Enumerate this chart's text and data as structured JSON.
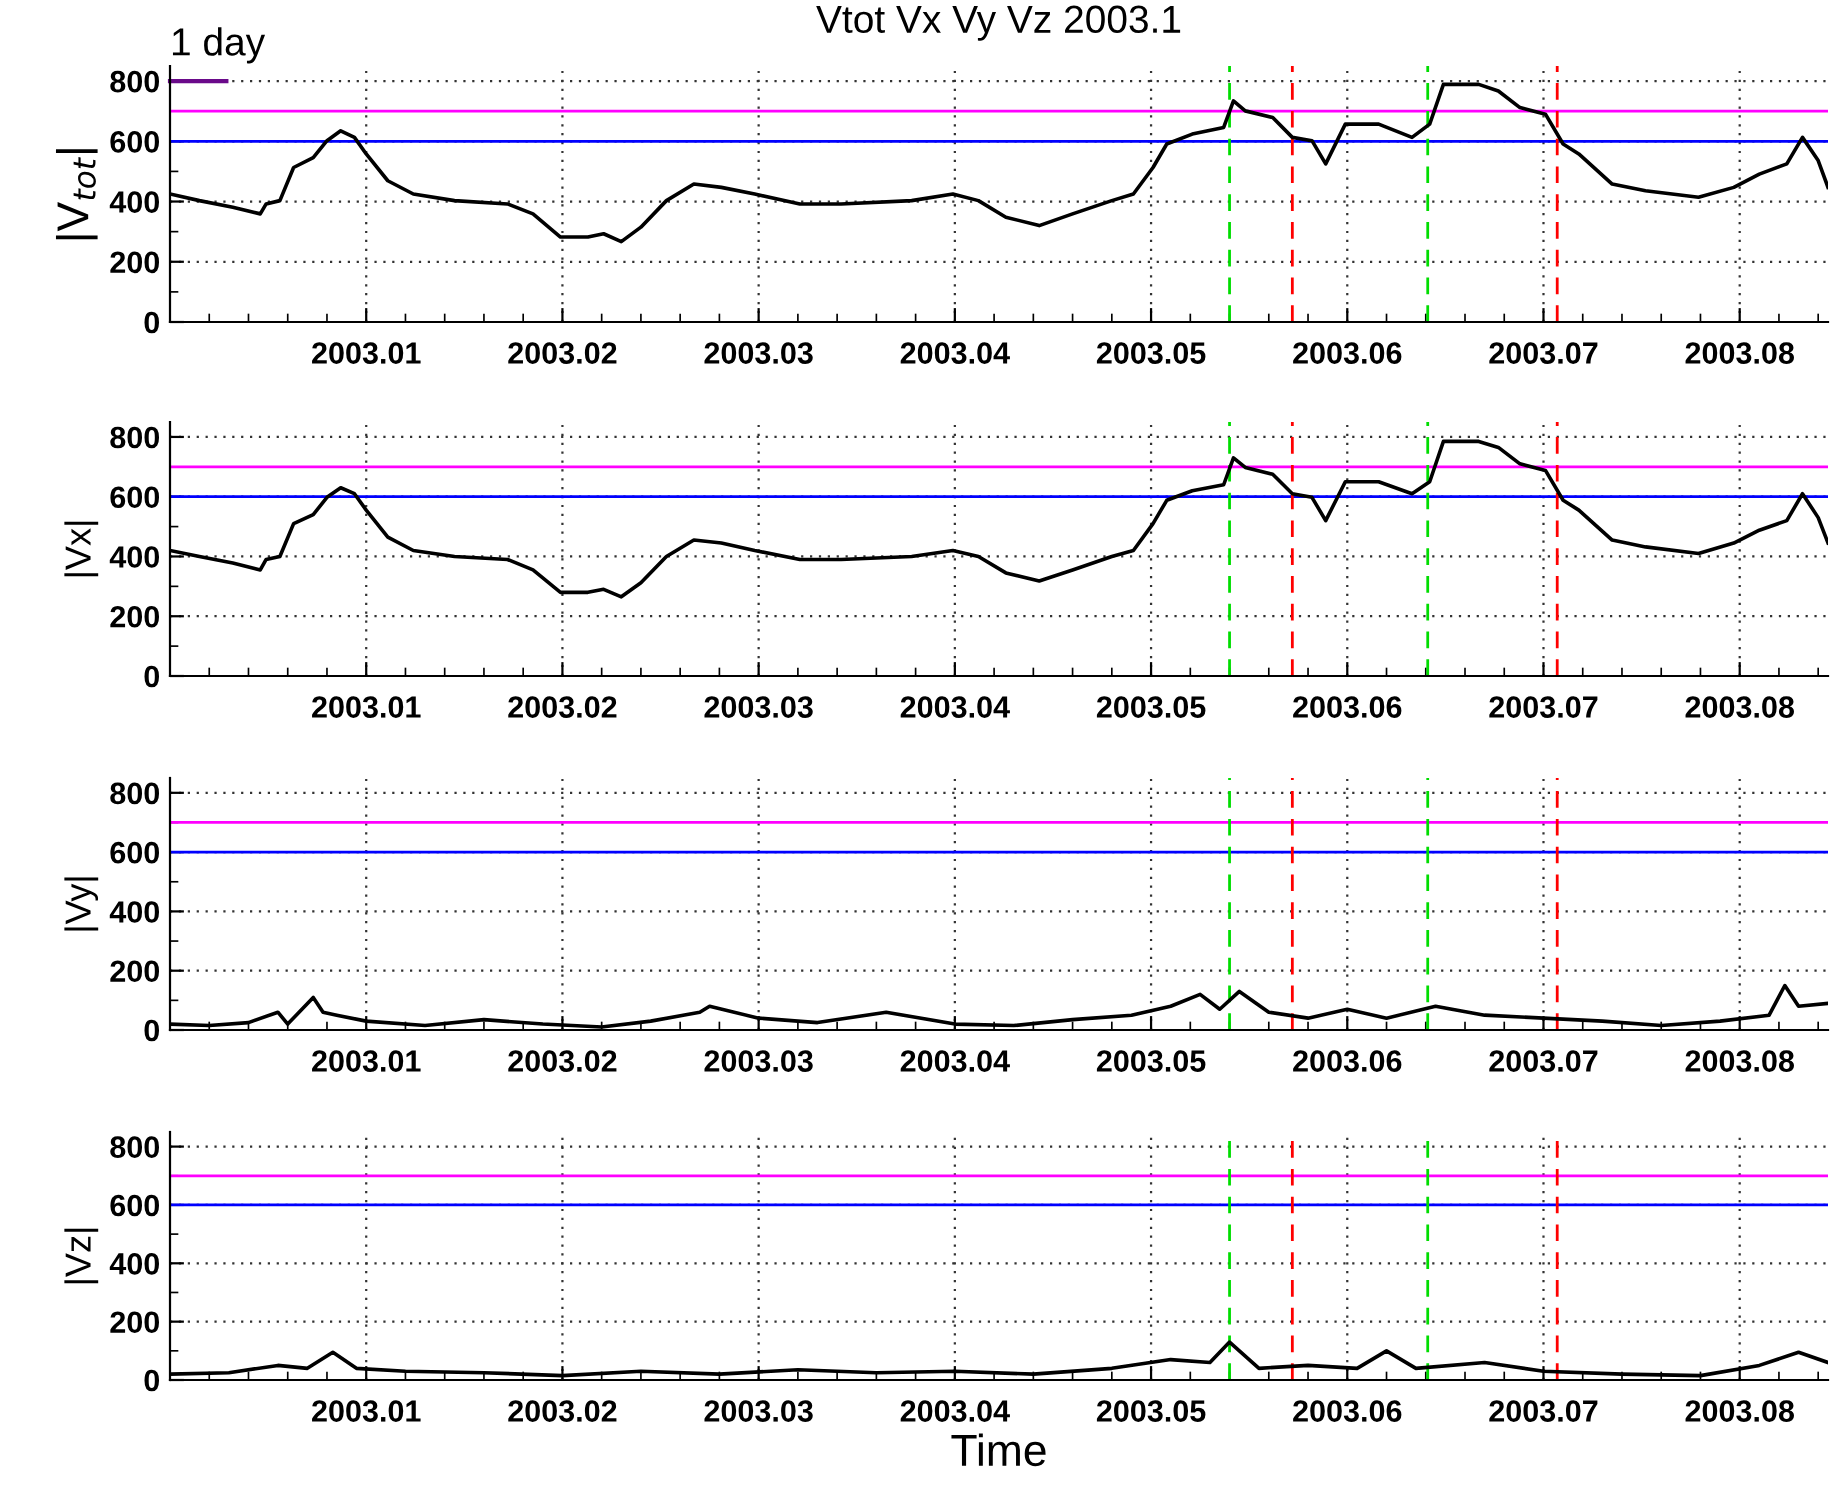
{
  "chart_data": [
    {
      "type": "line",
      "title": "Vtot Vx Vy Vz 2003.1",
      "ylabel": "|V$_{tot}$|",
      "annotations": [
        "1 day"
      ],
      "x": [
        2003.0,
        2003.0015,
        2003.0032,
        2003.0046,
        2003.0049,
        2003.0056,
        2003.0063,
        2003.0073,
        2003.008,
        2003.0087,
        2003.0094,
        2003.01,
        2003.0111,
        2003.0124,
        2003.0145,
        2003.0172,
        2003.0185,
        2003.0199,
        2003.0213,
        2003.0221,
        2003.023,
        2003.024,
        2003.0253,
        2003.0267,
        2003.0281,
        2003.0298,
        2003.0321,
        2003.0342,
        2003.0378,
        2003.0399,
        2003.0412,
        2003.0426,
        2003.0443,
        2003.046,
        2003.048,
        2003.0491,
        2003.0501,
        2003.0508,
        2003.0521,
        2003.0537,
        2003.0542,
        2003.0548,
        2003.0562,
        2003.0572,
        2003.0582,
        2003.0589,
        2003.0599,
        2003.0616,
        2003.0633,
        2003.0642,
        2003.0649,
        2003.0667,
        2003.0677,
        2003.0688,
        2003.0701,
        2003.071,
        2003.0718,
        2003.0735,
        2003.0752,
        2003.0779,
        2003.0797,
        2003.081,
        2003.0824,
        2003.0832,
        2003.084,
        2003.0845
      ],
      "series": [
        {
          "color": "#000000",
          "values": [
            425,
            403,
            381,
            359,
            392,
            403,
            513,
            546,
            602,
            635,
            613,
            558,
            469,
            425,
            403,
            392,
            359,
            282,
            282,
            293,
            267,
            315,
            403,
            458,
            447,
            425,
            392,
            392,
            403,
            425,
            403,
            348,
            320,
            359,
            403,
            425,
            513,
            591,
            624,
            646,
            734,
            701,
            679,
            613,
            602,
            525,
            657,
            657,
            613,
            657,
            789,
            789,
            767,
            712,
            690,
            591,
            558,
            458,
            436,
            414,
            447,
            491,
            525,
            613,
            536,
            447
          ]
        }
      ],
      "xlim": [
        2003.0,
        2003.0845
      ],
      "xticks": [
        2003.01,
        2003.02,
        2003.03,
        2003.04,
        2003.05,
        2003.06,
        2003.07,
        2003.08
      ],
      "ylim": [
        0,
        850
      ],
      "yticks": [
        0,
        200,
        400,
        600,
        800
      ],
      "grid": true,
      "line_style": "solid",
      "ref_lines": [
        {
          "axis": "y",
          "value": 700,
          "color": "#ff00ff"
        },
        {
          "axis": "y",
          "value": 600,
          "color": "#0000ff"
        },
        {
          "axis": "x",
          "value": 2003.054,
          "color": "#00dd00",
          "line_style": "dashed"
        },
        {
          "axis": "x",
          "value": 2003.0572,
          "color": "#ff0000",
          "line_style": "dashed"
        },
        {
          "axis": "x",
          "value": 2003.0641,
          "color": "#00dd00",
          "line_style": "dashed"
        },
        {
          "axis": "x",
          "value": 2003.0707,
          "color": "#ff0000",
          "line_style": "dashed"
        }
      ]
    },
    {
      "type": "line",
      "ylabel": "|Vx|",
      "x": [
        2003.0,
        2003.0015,
        2003.0032,
        2003.0046,
        2003.0049,
        2003.0056,
        2003.0063,
        2003.0073,
        2003.008,
        2003.0087,
        2003.0094,
        2003.01,
        2003.0111,
        2003.0124,
        2003.0145,
        2003.0172,
        2003.0185,
        2003.0199,
        2003.0213,
        2003.0221,
        2003.023,
        2003.024,
        2003.0253,
        2003.0267,
        2003.0281,
        2003.0298,
        2003.0321,
        2003.0342,
        2003.0378,
        2003.0399,
        2003.0412,
        2003.0426,
        2003.0443,
        2003.046,
        2003.048,
        2003.0491,
        2003.0501,
        2003.0508,
        2003.0521,
        2003.0537,
        2003.0542,
        2003.0548,
        2003.0562,
        2003.0572,
        2003.0582,
        2003.0589,
        2003.0599,
        2003.0616,
        2003.0633,
        2003.0642,
        2003.0649,
        2003.0667,
        2003.0677,
        2003.0688,
        2003.0701,
        2003.071,
        2003.0718,
        2003.0735,
        2003.0752,
        2003.0779,
        2003.0797,
        2003.081,
        2003.0824,
        2003.0832,
        2003.084,
        2003.0845
      ],
      "series": [
        {
          "color": "#000000",
          "values": [
            420,
            400,
            378,
            355,
            390,
            400,
            510,
            540,
            598,
            630,
            610,
            555,
            465,
            420,
            400,
            390,
            355,
            280,
            280,
            290,
            265,
            312,
            400,
            455,
            445,
            420,
            390,
            390,
            400,
            420,
            400,
            345,
            318,
            355,
            400,
            420,
            510,
            588,
            620,
            640,
            730,
            698,
            675,
            610,
            598,
            520,
            650,
            650,
            610,
            650,
            785,
            785,
            765,
            710,
            688,
            588,
            555,
            455,
            432,
            410,
            445,
            488,
            520,
            610,
            530,
            445
          ]
        }
      ],
      "xlim": [
        2003.0,
        2003.0845
      ],
      "xticks": [
        2003.01,
        2003.02,
        2003.03,
        2003.04,
        2003.05,
        2003.06,
        2003.07,
        2003.08
      ],
      "ylim": [
        0,
        850
      ],
      "yticks": [
        0,
        200,
        400,
        600,
        800
      ],
      "grid": true,
      "line_style": "solid",
      "ref_lines": [
        {
          "axis": "y",
          "value": 700,
          "color": "#ff00ff"
        },
        {
          "axis": "y",
          "value": 600,
          "color": "#0000ff"
        },
        {
          "axis": "x",
          "value": 2003.054,
          "color": "#00dd00",
          "line_style": "dashed"
        },
        {
          "axis": "x",
          "value": 2003.0572,
          "color": "#ff0000",
          "line_style": "dashed"
        },
        {
          "axis": "x",
          "value": 2003.0641,
          "color": "#00dd00",
          "line_style": "dashed"
        },
        {
          "axis": "x",
          "value": 2003.0707,
          "color": "#ff0000",
          "line_style": "dashed"
        }
      ]
    },
    {
      "type": "line",
      "ylabel": "|Vy|",
      "x": [
        2003.0,
        2003.002,
        2003.004,
        2003.0055,
        2003.006,
        2003.0073,
        2003.0078,
        2003.0085,
        2003.01,
        2003.013,
        2003.016,
        2003.019,
        2003.022,
        2003.0245,
        2003.027,
        2003.0275,
        2003.03,
        2003.033,
        2003.0365,
        2003.04,
        2003.043,
        2003.046,
        2003.049,
        2003.051,
        2003.0525,
        2003.0535,
        2003.0545,
        2003.056,
        2003.058,
        2003.06,
        2003.062,
        2003.0645,
        2003.067,
        2003.07,
        2003.073,
        2003.076,
        2003.079,
        2003.0815,
        2003.0823,
        2003.083,
        2003.0845
      ],
      "series": [
        {
          "color": "#000000",
          "values": [
            20,
            15,
            25,
            60,
            20,
            110,
            60,
            50,
            30,
            15,
            35,
            20,
            10,
            30,
            60,
            80,
            40,
            25,
            60,
            20,
            15,
            35,
            50,
            80,
            120,
            70,
            130,
            60,
            40,
            70,
            40,
            80,
            50,
            40,
            30,
            15,
            30,
            50,
            150,
            80,
            90
          ]
        }
      ],
      "xlim": [
        2003.0,
        2003.0845
      ],
      "xticks": [
        2003.01,
        2003.02,
        2003.03,
        2003.04,
        2003.05,
        2003.06,
        2003.07,
        2003.08
      ],
      "ylim": [
        0,
        850
      ],
      "yticks": [
        0,
        200,
        400,
        600,
        800
      ],
      "grid": true,
      "line_style": "solid",
      "ref_lines": [
        {
          "axis": "y",
          "value": 700,
          "color": "#ff00ff"
        },
        {
          "axis": "y",
          "value": 600,
          "color": "#0000ff"
        },
        {
          "axis": "x",
          "value": 2003.054,
          "color": "#00dd00",
          "line_style": "dashed"
        },
        {
          "axis": "x",
          "value": 2003.0572,
          "color": "#ff0000",
          "line_style": "dashed"
        },
        {
          "axis": "x",
          "value": 2003.0641,
          "color": "#00dd00",
          "line_style": "dashed"
        },
        {
          "axis": "x",
          "value": 2003.0707,
          "color": "#ff0000",
          "line_style": "dashed"
        }
      ]
    },
    {
      "type": "line",
      "xlabel": "Time",
      "ylabel": "|Vz|",
      "x": [
        2003.0,
        2003.003,
        2003.0055,
        2003.007,
        2003.0083,
        2003.0095,
        2003.012,
        2003.016,
        2003.02,
        2003.024,
        2003.028,
        2003.032,
        2003.036,
        2003.04,
        2003.044,
        2003.048,
        2003.051,
        2003.053,
        2003.054,
        2003.0555,
        2003.058,
        2003.0605,
        2003.062,
        2003.0635,
        2003.067,
        2003.07,
        2003.074,
        2003.078,
        2003.081,
        2003.083,
        2003.0845
      ],
      "series": [
        {
          "color": "#000000",
          "values": [
            20,
            25,
            50,
            40,
            95,
            40,
            30,
            25,
            15,
            30,
            20,
            35,
            25,
            30,
            20,
            40,
            70,
            60,
            130,
            40,
            50,
            40,
            100,
            40,
            60,
            30,
            20,
            15,
            50,
            95,
            60
          ]
        }
      ],
      "xlim": [
        2003.0,
        2003.0845
      ],
      "xticks": [
        2003.01,
        2003.02,
        2003.03,
        2003.04,
        2003.05,
        2003.06,
        2003.07,
        2003.08
      ],
      "ylim": [
        0,
        850
      ],
      "yticks": [
        0,
        200,
        400,
        600,
        800
      ],
      "grid": true,
      "line_style": "solid",
      "ref_lines": [
        {
          "axis": "y",
          "value": 700,
          "color": "#ff00ff"
        },
        {
          "axis": "y",
          "value": 600,
          "color": "#0000ff"
        },
        {
          "axis": "x",
          "value": 2003.054,
          "color": "#00dd00",
          "line_style": "dashed"
        },
        {
          "axis": "x",
          "value": 2003.0572,
          "color": "#ff0000",
          "line_style": "dashed"
        },
        {
          "axis": "x",
          "value": 2003.0641,
          "color": "#00dd00",
          "line_style": "dashed"
        },
        {
          "axis": "x",
          "value": 2003.0707,
          "color": "#ff0000",
          "line_style": "dashed"
        }
      ]
    }
  ]
}
